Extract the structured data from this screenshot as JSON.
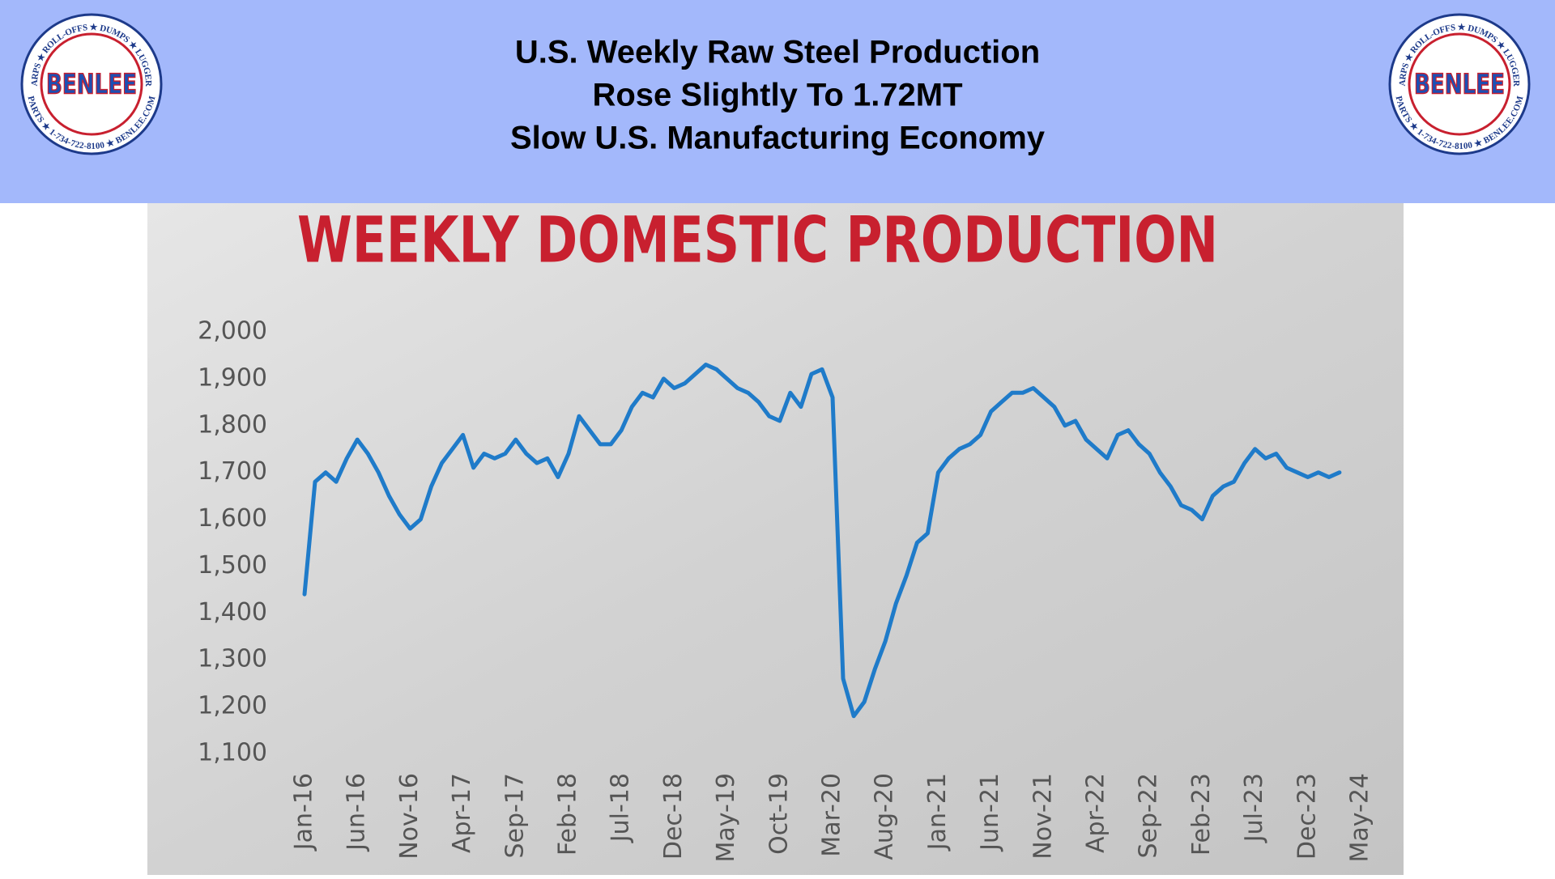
{
  "header": {
    "title_lines": [
      "U.S. Weekly Raw Steel Production",
      "Rose Slightly To 1.72MT",
      "Slow U.S. Manufacturing Economy"
    ]
  },
  "logo": {
    "name": "BENLEE",
    "top_ring": "TARPS ★ ROLL-OFFS ★ DUMPS ★ LUGGERS",
    "bottom_ring": "PARTS ★ 1-734-722-8100 ★ BENLEE.COM"
  },
  "chart_data": {
    "type": "line",
    "title": "WEEKLY DOMESTIC PRODUCTION",
    "color": "#1f7bc9",
    "x": [
      "2016-01",
      "2016-02",
      "2016-03",
      "2016-04",
      "2016-05",
      "2016-06",
      "2016-07",
      "2016-08",
      "2016-09",
      "2016-10",
      "2016-11",
      "2016-12",
      "2017-01",
      "2017-02",
      "2017-03",
      "2017-04",
      "2017-05",
      "2017-06",
      "2017-07",
      "2017-08",
      "2017-09",
      "2017-10",
      "2017-11",
      "2017-12",
      "2018-01",
      "2018-02",
      "2018-03",
      "2018-04",
      "2018-05",
      "2018-06",
      "2018-07",
      "2018-08",
      "2018-09",
      "2018-10",
      "2018-11",
      "2018-12",
      "2019-01",
      "2019-02",
      "2019-03",
      "2019-04",
      "2019-05",
      "2019-06",
      "2019-07",
      "2019-08",
      "2019-09",
      "2019-10",
      "2019-11",
      "2019-12",
      "2020-01",
      "2020-02",
      "2020-03",
      "2020-04",
      "2020-05",
      "2020-06",
      "2020-07",
      "2020-08",
      "2020-09",
      "2020-10",
      "2020-11",
      "2020-12",
      "2021-01",
      "2021-02",
      "2021-03",
      "2021-04",
      "2021-05",
      "2021-06",
      "2021-07",
      "2021-08",
      "2021-09",
      "2021-10",
      "2021-11",
      "2021-12",
      "2022-01",
      "2022-02",
      "2022-03",
      "2022-04",
      "2022-05",
      "2022-06",
      "2022-07",
      "2022-08",
      "2022-09",
      "2022-10",
      "2022-11",
      "2022-12",
      "2023-01",
      "2023-02",
      "2023-03",
      "2023-04",
      "2023-05",
      "2023-06",
      "2023-07",
      "2023-08",
      "2023-09",
      "2023-10",
      "2023-11",
      "2023-12",
      "2024-01",
      "2024-02",
      "2024-03"
    ],
    "values": [
      1440,
      1680,
      1700,
      1680,
      1730,
      1770,
      1740,
      1700,
      1650,
      1610,
      1580,
      1600,
      1670,
      1720,
      1750,
      1780,
      1710,
      1740,
      1730,
      1740,
      1770,
      1740,
      1720,
      1730,
      1690,
      1740,
      1820,
      1790,
      1760,
      1760,
      1790,
      1840,
      1870,
      1860,
      1900,
      1880,
      1890,
      1910,
      1930,
      1920,
      1900,
      1880,
      1870,
      1850,
      1820,
      1810,
      1870,
      1840,
      1910,
      1920,
      1860,
      1260,
      1180,
      1210,
      1280,
      1340,
      1420,
      1480,
      1550,
      1570,
      1700,
      1730,
      1750,
      1760,
      1780,
      1830,
      1850,
      1870,
      1870,
      1880,
      1860,
      1840,
      1800,
      1810,
      1770,
      1750,
      1730,
      1780,
      1790,
      1760,
      1740,
      1700,
      1670,
      1630,
      1620,
      1600,
      1650,
      1670,
      1680,
      1720,
      1750,
      1730,
      1740,
      1710,
      1700,
      1690,
      1700,
      1690,
      1700
    ],
    "xlim": [
      "2016-01",
      "2024-05"
    ],
    "xticks": [
      {
        "value": "2016-01",
        "label": "Jan-16"
      },
      {
        "value": "2016-06",
        "label": "Jun-16"
      },
      {
        "value": "2016-11",
        "label": "Nov-16"
      },
      {
        "value": "2017-04",
        "label": "Apr-17"
      },
      {
        "value": "2017-09",
        "label": "Sep-17"
      },
      {
        "value": "2018-02",
        "label": "Feb-18"
      },
      {
        "value": "2018-07",
        "label": "Jul-18"
      },
      {
        "value": "2018-12",
        "label": "Dec-18"
      },
      {
        "value": "2019-05",
        "label": "May-19"
      },
      {
        "value": "2019-10",
        "label": "Oct-19"
      },
      {
        "value": "2020-03",
        "label": "Mar-20"
      },
      {
        "value": "2020-08",
        "label": "Aug-20"
      },
      {
        "value": "2021-01",
        "label": "Jan-21"
      },
      {
        "value": "2021-06",
        "label": "Jun-21"
      },
      {
        "value": "2021-11",
        "label": "Nov-21"
      },
      {
        "value": "2022-04",
        "label": "Apr-22"
      },
      {
        "value": "2022-09",
        "label": "Sep-22"
      },
      {
        "value": "2023-02",
        "label": "Feb-23"
      },
      {
        "value": "2023-07",
        "label": "Jul-23"
      },
      {
        "value": "2023-12",
        "label": "Dec-23"
      },
      {
        "value": "2024-05",
        "label": "May-24"
      }
    ],
    "ylim": [
      1100,
      2000
    ],
    "yticks": [
      {
        "value": 1100,
        "label": "1,100"
      },
      {
        "value": 1200,
        "label": "1,200"
      },
      {
        "value": 1300,
        "label": "1,300"
      },
      {
        "value": 1400,
        "label": "1,400"
      },
      {
        "value": 1500,
        "label": "1,500"
      },
      {
        "value": 1600,
        "label": "1,600"
      },
      {
        "value": 1700,
        "label": "1,700"
      },
      {
        "value": 1800,
        "label": "1,800"
      },
      {
        "value": 1900,
        "label": "1,900"
      },
      {
        "value": 2000,
        "label": "2,000"
      }
    ],
    "grid": false
  }
}
